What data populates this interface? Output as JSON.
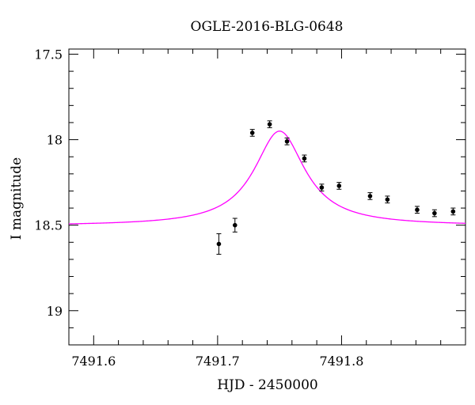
{
  "chart_data": {
    "type": "scatter",
    "title": "OGLE-2016-BLG-0648",
    "xlabel": "HJD - 2450000",
    "ylabel": "I magnitude",
    "xlim": [
      7491.58,
      7491.9
    ],
    "ylim": [
      19.2,
      17.47
    ],
    "y_inverted": true,
    "x_ticks": [
      7491.6,
      7491.7,
      7491.8
    ],
    "x_tick_labels": [
      "7491.6",
      "7491.7",
      "7491.8"
    ],
    "y_ticks": [
      17.5,
      18,
      18.5,
      19
    ],
    "y_tick_labels": [
      "17.5",
      "18",
      "18.5",
      "19"
    ],
    "x_minor_step": 0.02,
    "y_minor_step": 0.1,
    "grid": false,
    "series": [
      {
        "kind": "points_with_errorbars",
        "color": "#000000",
        "x": [
          7491.701,
          7491.714,
          7491.728,
          7491.742,
          7491.756,
          7491.77,
          7491.784,
          7491.798,
          7491.823,
          7491.837,
          7491.861,
          7491.875,
          7491.89
        ],
        "y": [
          18.61,
          18.5,
          17.96,
          17.91,
          18.01,
          18.11,
          18.28,
          18.27,
          18.33,
          18.35,
          18.41,
          18.43,
          18.42
        ],
        "yerr": [
          0.06,
          0.04,
          0.02,
          0.02,
          0.02,
          0.02,
          0.02,
          0.02,
          0.02,
          0.02,
          0.02,
          0.02,
          0.02
        ]
      },
      {
        "kind": "model_curve",
        "color": "#ff00ff",
        "model": {
          "baseline": 18.504,
          "peak_amplitude": 0.554,
          "center": 7491.75,
          "half_width": 0.025
        }
      }
    ]
  }
}
